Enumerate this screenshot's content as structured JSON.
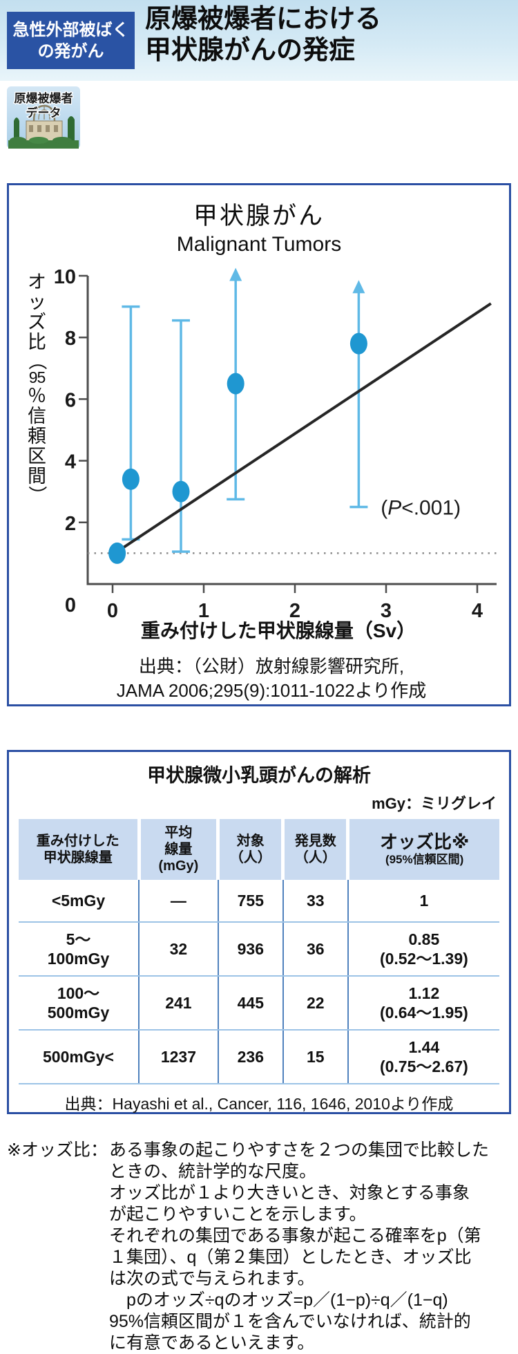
{
  "header": {
    "badge_line1": "急性外部被ばく",
    "badge_line2": "の発がん",
    "title_line1": "原爆被爆者における",
    "title_line2": "甲状腺がんの発症"
  },
  "stamp": {
    "label_line1": "原爆被爆者",
    "label_line2": "データ"
  },
  "chart_data": {
    "type": "scatter",
    "title": "甲状腺がん",
    "subtitle": "Malignant Tumors",
    "xlabel": "重み付けした甲状腺線量（Sv）",
    "ylabel": "オッズ比（95％信頼区間）",
    "ylabel_chars": [
      "オ",
      "ッ",
      "ズ",
      "比",
      "（",
      "95",
      "％",
      "信",
      "頼",
      "区",
      "間",
      "）"
    ],
    "xlim": [
      0,
      4
    ],
    "ylim": [
      0,
      10
    ],
    "xticks": [
      0,
      1,
      2,
      3,
      4
    ],
    "yticks": [
      0,
      2,
      4,
      6,
      8,
      10
    ],
    "grid": false,
    "reference_line_y": 1,
    "annotation": {
      "open": "(",
      "variable": "P",
      "rest": "<.001)",
      "x": 3.38,
      "y": 2.25
    },
    "points": [
      {
        "x": 0.05,
        "y": 1.0,
        "ci_low": null,
        "ci_high": null,
        "arrow": false
      },
      {
        "x": 0.2,
        "y": 3.4,
        "ci_low": 1.45,
        "ci_high": 9.0,
        "arrow": false
      },
      {
        "x": 0.75,
        "y": 3.0,
        "ci_low": 1.05,
        "ci_high": 8.55,
        "arrow": false
      },
      {
        "x": 1.35,
        "y": 6.5,
        "ci_low": 2.75,
        "ci_high": 9.9,
        "arrow": true
      },
      {
        "x": 2.7,
        "y": 7.8,
        "ci_low": 2.5,
        "ci_high": 9.5,
        "arrow": true
      }
    ],
    "trend_line": {
      "x1": 0.05,
      "y1": 1.05,
      "x2": 4.15,
      "y2": 9.1
    },
    "source_line1": "出典：（公財）放射線影響研究所,",
    "source_line2": "JAMA 2006;295(9):1011-1022より作成",
    "colors": {
      "point": "#1f97d1",
      "error_bar": "#5fb9e6",
      "trend": "#262626",
      "reference": "#8a8a8a",
      "axis": "#4d4d4d"
    }
  },
  "table": {
    "title": "甲状腺微小乳頭がんの解析",
    "unit_note": "mGy：ミリグレイ",
    "columns": [
      {
        "lines": [
          "重み付けした",
          "甲状腺線量"
        ]
      },
      {
        "lines": [
          "平均",
          "線量",
          "(mGy)"
        ]
      },
      {
        "lines": [
          "対象",
          "（人）"
        ]
      },
      {
        "lines": [
          "発見数",
          "（人）"
        ]
      },
      {
        "lines": [
          "オッズ比※",
          "(95%信頼区間)"
        ]
      }
    ],
    "rows": [
      {
        "dose": [
          "<5mGy"
        ],
        "mean_dose": "—",
        "subjects": "755",
        "found": "33",
        "odds_ratio": [
          "1"
        ]
      },
      {
        "dose": [
          "5～",
          "100mGy"
        ],
        "mean_dose": "32",
        "subjects": "936",
        "found": "36",
        "odds_ratio": [
          "0.85",
          "(0.52～1.39)"
        ]
      },
      {
        "dose": [
          "100～",
          "500mGy"
        ],
        "mean_dose": "241",
        "subjects": "445",
        "found": "22",
        "odds_ratio": [
          "1.12",
          "(0.64～1.95)"
        ]
      },
      {
        "dose": [
          "500mGy<"
        ],
        "mean_dose": "1237",
        "subjects": "236",
        "found": "15",
        "odds_ratio": [
          "1.44",
          "(0.75～2.67)"
        ]
      }
    ],
    "source": "出典：Hayashi et al.,  Cancer, 116, 1646, 2010より作成"
  },
  "footnote": {
    "label": "※オッズ比：",
    "lines": [
      "ある事象の起こりやすさを２つの集団で比較した",
      "ときの、統計学的な尺度。",
      "オッズ比が１より大きいとき、対象とする事象",
      "が起こりやすいことを示します。",
      "それぞれの集団である事象が起こる確率をp（第",
      "１集団）、q（第２集団）としたとき、オッズ比",
      "は次の式で与えられます。",
      "　pのオッズ÷qのオッズ=p／(1−p)÷q／(1−q)",
      "95%信頼区間が１を含んでいなければ、統計的",
      "に有意であるといえます。"
    ]
  }
}
